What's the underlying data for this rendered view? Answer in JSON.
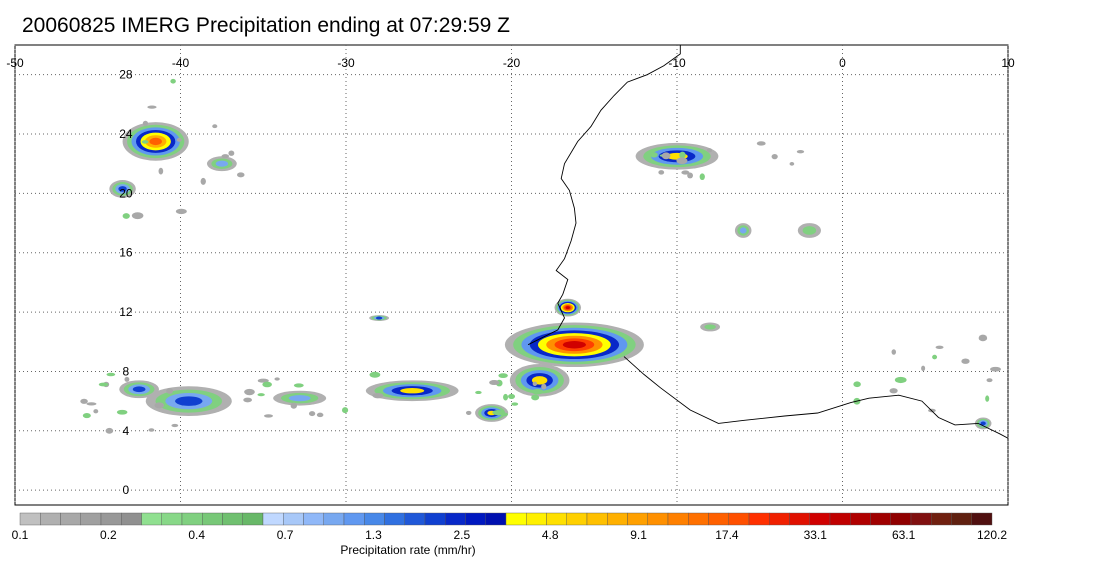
{
  "title": "20060825 IMERG Precipitation ending at 07:29:59 Z",
  "map": {
    "lon_ticks": [
      "-50",
      "-40",
      "-30",
      "-20",
      "-10",
      "0",
      "10"
    ],
    "lat_ticks": [
      "28",
      "24",
      "20",
      "16",
      "12",
      "8",
      "4",
      "0"
    ],
    "lon_range": [
      -50,
      10
    ],
    "lat_range": [
      -1,
      30
    ],
    "grid": "dotted",
    "precip_cells": [
      {
        "lon": -41.5,
        "lat": 23.5,
        "rx": 2.0,
        "ry": 1.3,
        "peak": "orange"
      },
      {
        "lon": -43.5,
        "lat": 20.3,
        "rx": 0.8,
        "ry": 0.6,
        "peak": "blue"
      },
      {
        "lon": -37.5,
        "lat": 22.0,
        "rx": 0.9,
        "ry": 0.5,
        "peak": "lightblue"
      },
      {
        "lon": -10.0,
        "lat": 22.5,
        "rx": 2.5,
        "ry": 0.9,
        "peak": "yellow"
      },
      {
        "lon": -16.2,
        "lat": 9.8,
        "rx": 4.2,
        "ry": 1.5,
        "peak": "red"
      },
      {
        "lon": -16.6,
        "lat": 12.3,
        "rx": 0.8,
        "ry": 0.6,
        "peak": "red"
      },
      {
        "lon": -18.3,
        "lat": 7.4,
        "rx": 1.8,
        "ry": 1.1,
        "peak": "yellow"
      },
      {
        "lon": -21.2,
        "lat": 5.2,
        "rx": 1.0,
        "ry": 0.6,
        "peak": "yellow"
      },
      {
        "lon": -39.5,
        "lat": 6.0,
        "rx": 2.6,
        "ry": 1.0,
        "peak": "blue"
      },
      {
        "lon": -42.5,
        "lat": 6.8,
        "rx": 1.2,
        "ry": 0.6,
        "peak": "blue"
      },
      {
        "lon": -26.0,
        "lat": 6.7,
        "rx": 2.8,
        "ry": 0.7,
        "peak": "yellow"
      },
      {
        "lon": -32.8,
        "lat": 6.2,
        "rx": 1.6,
        "ry": 0.5,
        "peak": "lightblue"
      },
      {
        "lon": -6.0,
        "lat": 17.5,
        "rx": 0.5,
        "ry": 0.5,
        "peak": "lightblue"
      },
      {
        "lon": -2.0,
        "lat": 17.5,
        "rx": 0.7,
        "ry": 0.5,
        "peak": "green"
      },
      {
        "lon": 8.5,
        "lat": 4.5,
        "rx": 0.5,
        "ry": 0.4,
        "peak": "blue"
      },
      {
        "lon": -28.0,
        "lat": 11.6,
        "rx": 0.6,
        "ry": 0.2,
        "peak": "blue"
      },
      {
        "lon": -8.0,
        "lat": 11.0,
        "rx": 0.6,
        "ry": 0.3,
        "peak": "green"
      }
    ],
    "coastline": [
      [
        -19.0,
        9.8
      ],
      [
        -17.2,
        10.8
      ],
      [
        -16.8,
        11.6
      ],
      [
        -17.2,
        12.6
      ],
      [
        -16.9,
        13.2
      ],
      [
        -16.6,
        14.2
      ],
      [
        -17.3,
        14.8
      ],
      [
        -16.8,
        15.6
      ],
      [
        -16.4,
        16.8
      ],
      [
        -16.1,
        18.0
      ],
      [
        -16.2,
        19.0
      ],
      [
        -16.5,
        20.2
      ],
      [
        -17.0,
        21.0
      ],
      [
        -16.8,
        22.0
      ],
      [
        -16.0,
        23.5
      ],
      [
        -15.2,
        24.5
      ],
      [
        -14.6,
        25.6
      ],
      [
        -13.8,
        26.6
      ],
      [
        -13.0,
        27.5
      ],
      [
        -11.8,
        28.0
      ],
      [
        -10.8,
        28.6
      ],
      [
        -9.8,
        29.4
      ],
      [
        -9.8,
        30.2
      ]
    ],
    "coastline_south": [
      [
        -13.2,
        9.0
      ],
      [
        -12.0,
        7.8
      ],
      [
        -11.0,
        6.9
      ],
      [
        -9.2,
        5.4
      ],
      [
        -7.5,
        4.5
      ],
      [
        -6.0,
        4.7
      ],
      [
        -3.5,
        5.0
      ],
      [
        -1.5,
        5.2
      ],
      [
        0.5,
        5.9
      ],
      [
        1.6,
        6.2
      ],
      [
        3.4,
        6.4
      ],
      [
        4.8,
        6.0
      ],
      [
        5.8,
        4.9
      ],
      [
        6.8,
        4.4
      ],
      [
        8.2,
        4.5
      ],
      [
        9.5,
        3.8
      ],
      [
        10.0,
        3.5
      ]
    ]
  },
  "colorbar": {
    "label": "Precipitation rate (mm/hr)",
    "tick_labels": [
      "0.1",
      "0.2",
      "0.4",
      "0.7",
      "1.3",
      "2.5",
      "4.8",
      "9.1",
      "17.4",
      "33.1",
      "63.1",
      "120.2"
    ],
    "colors": [
      "#c0c0c0",
      "#b0b0b0",
      "#a8a8a8",
      "#a0a0a0",
      "#989898",
      "#909090",
      "#90e090",
      "#88d888",
      "#80d080",
      "#78c878",
      "#70c070",
      "#68b868",
      "#c0d8ff",
      "#a8c8f8",
      "#90b8f8",
      "#78a8f0",
      "#6098f0",
      "#4888e8",
      "#3070e0",
      "#2058d8",
      "#1040d0",
      "#0828c8",
      "#0018c0",
      "#0010b0",
      "#ffff00",
      "#fff000",
      "#ffe000",
      "#ffd000",
      "#ffc000",
      "#ffb000",
      "#ffa000",
      "#ff9000",
      "#ff8000",
      "#ff7000",
      "#ff6000",
      "#ff5000",
      "#ff3000",
      "#f02000",
      "#e01000",
      "#d00000",
      "#c00000",
      "#b00000",
      "#a00000",
      "#900000",
      "#801010",
      "#702010",
      "#602010",
      "#501010"
    ]
  }
}
